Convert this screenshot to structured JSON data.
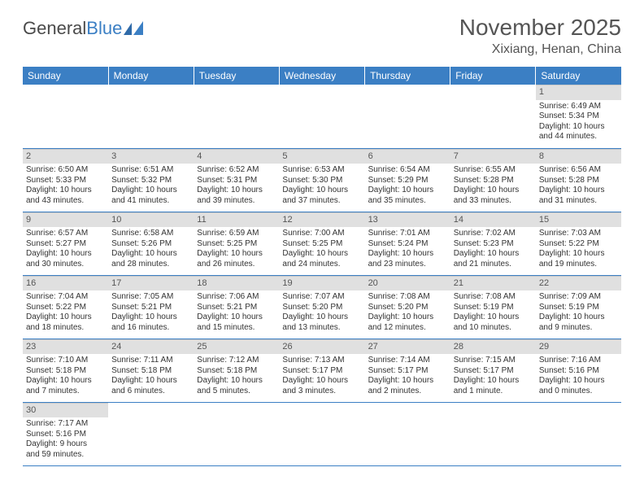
{
  "brand": {
    "part1": "General",
    "part2": "Blue"
  },
  "title": "November 2025",
  "location": "Xixiang, Henan, China",
  "dayHeaders": [
    "Sunday",
    "Monday",
    "Tuesday",
    "Wednesday",
    "Thursday",
    "Friday",
    "Saturday"
  ],
  "colors": {
    "headerBg": "#3b7fc4",
    "daynumBg": "#e0e0e0"
  },
  "weeks": [
    [
      {
        "empty": true
      },
      {
        "empty": true
      },
      {
        "empty": true
      },
      {
        "empty": true
      },
      {
        "empty": true
      },
      {
        "empty": true
      },
      {
        "num": "1",
        "sunrise": "Sunrise: 6:49 AM",
        "sunset": "Sunset: 5:34 PM",
        "daylight1": "Daylight: 10 hours",
        "daylight2": "and 44 minutes."
      }
    ],
    [
      {
        "num": "2",
        "sunrise": "Sunrise: 6:50 AM",
        "sunset": "Sunset: 5:33 PM",
        "daylight1": "Daylight: 10 hours",
        "daylight2": "and 43 minutes."
      },
      {
        "num": "3",
        "sunrise": "Sunrise: 6:51 AM",
        "sunset": "Sunset: 5:32 PM",
        "daylight1": "Daylight: 10 hours",
        "daylight2": "and 41 minutes."
      },
      {
        "num": "4",
        "sunrise": "Sunrise: 6:52 AM",
        "sunset": "Sunset: 5:31 PM",
        "daylight1": "Daylight: 10 hours",
        "daylight2": "and 39 minutes."
      },
      {
        "num": "5",
        "sunrise": "Sunrise: 6:53 AM",
        "sunset": "Sunset: 5:30 PM",
        "daylight1": "Daylight: 10 hours",
        "daylight2": "and 37 minutes."
      },
      {
        "num": "6",
        "sunrise": "Sunrise: 6:54 AM",
        "sunset": "Sunset: 5:29 PM",
        "daylight1": "Daylight: 10 hours",
        "daylight2": "and 35 minutes."
      },
      {
        "num": "7",
        "sunrise": "Sunrise: 6:55 AM",
        "sunset": "Sunset: 5:28 PM",
        "daylight1": "Daylight: 10 hours",
        "daylight2": "and 33 minutes."
      },
      {
        "num": "8",
        "sunrise": "Sunrise: 6:56 AM",
        "sunset": "Sunset: 5:28 PM",
        "daylight1": "Daylight: 10 hours",
        "daylight2": "and 31 minutes."
      }
    ],
    [
      {
        "num": "9",
        "sunrise": "Sunrise: 6:57 AM",
        "sunset": "Sunset: 5:27 PM",
        "daylight1": "Daylight: 10 hours",
        "daylight2": "and 30 minutes."
      },
      {
        "num": "10",
        "sunrise": "Sunrise: 6:58 AM",
        "sunset": "Sunset: 5:26 PM",
        "daylight1": "Daylight: 10 hours",
        "daylight2": "and 28 minutes."
      },
      {
        "num": "11",
        "sunrise": "Sunrise: 6:59 AM",
        "sunset": "Sunset: 5:25 PM",
        "daylight1": "Daylight: 10 hours",
        "daylight2": "and 26 minutes."
      },
      {
        "num": "12",
        "sunrise": "Sunrise: 7:00 AM",
        "sunset": "Sunset: 5:25 PM",
        "daylight1": "Daylight: 10 hours",
        "daylight2": "and 24 minutes."
      },
      {
        "num": "13",
        "sunrise": "Sunrise: 7:01 AM",
        "sunset": "Sunset: 5:24 PM",
        "daylight1": "Daylight: 10 hours",
        "daylight2": "and 23 minutes."
      },
      {
        "num": "14",
        "sunrise": "Sunrise: 7:02 AM",
        "sunset": "Sunset: 5:23 PM",
        "daylight1": "Daylight: 10 hours",
        "daylight2": "and 21 minutes."
      },
      {
        "num": "15",
        "sunrise": "Sunrise: 7:03 AM",
        "sunset": "Sunset: 5:22 PM",
        "daylight1": "Daylight: 10 hours",
        "daylight2": "and 19 minutes."
      }
    ],
    [
      {
        "num": "16",
        "sunrise": "Sunrise: 7:04 AM",
        "sunset": "Sunset: 5:22 PM",
        "daylight1": "Daylight: 10 hours",
        "daylight2": "and 18 minutes."
      },
      {
        "num": "17",
        "sunrise": "Sunrise: 7:05 AM",
        "sunset": "Sunset: 5:21 PM",
        "daylight1": "Daylight: 10 hours",
        "daylight2": "and 16 minutes."
      },
      {
        "num": "18",
        "sunrise": "Sunrise: 7:06 AM",
        "sunset": "Sunset: 5:21 PM",
        "daylight1": "Daylight: 10 hours",
        "daylight2": "and 15 minutes."
      },
      {
        "num": "19",
        "sunrise": "Sunrise: 7:07 AM",
        "sunset": "Sunset: 5:20 PM",
        "daylight1": "Daylight: 10 hours",
        "daylight2": "and 13 minutes."
      },
      {
        "num": "20",
        "sunrise": "Sunrise: 7:08 AM",
        "sunset": "Sunset: 5:20 PM",
        "daylight1": "Daylight: 10 hours",
        "daylight2": "and 12 minutes."
      },
      {
        "num": "21",
        "sunrise": "Sunrise: 7:08 AM",
        "sunset": "Sunset: 5:19 PM",
        "daylight1": "Daylight: 10 hours",
        "daylight2": "and 10 minutes."
      },
      {
        "num": "22",
        "sunrise": "Sunrise: 7:09 AM",
        "sunset": "Sunset: 5:19 PM",
        "daylight1": "Daylight: 10 hours",
        "daylight2": "and 9 minutes."
      }
    ],
    [
      {
        "num": "23",
        "sunrise": "Sunrise: 7:10 AM",
        "sunset": "Sunset: 5:18 PM",
        "daylight1": "Daylight: 10 hours",
        "daylight2": "and 7 minutes."
      },
      {
        "num": "24",
        "sunrise": "Sunrise: 7:11 AM",
        "sunset": "Sunset: 5:18 PM",
        "daylight1": "Daylight: 10 hours",
        "daylight2": "and 6 minutes."
      },
      {
        "num": "25",
        "sunrise": "Sunrise: 7:12 AM",
        "sunset": "Sunset: 5:18 PM",
        "daylight1": "Daylight: 10 hours",
        "daylight2": "and 5 minutes."
      },
      {
        "num": "26",
        "sunrise": "Sunrise: 7:13 AM",
        "sunset": "Sunset: 5:17 PM",
        "daylight1": "Daylight: 10 hours",
        "daylight2": "and 3 minutes."
      },
      {
        "num": "27",
        "sunrise": "Sunrise: 7:14 AM",
        "sunset": "Sunset: 5:17 PM",
        "daylight1": "Daylight: 10 hours",
        "daylight2": "and 2 minutes."
      },
      {
        "num": "28",
        "sunrise": "Sunrise: 7:15 AM",
        "sunset": "Sunset: 5:17 PM",
        "daylight1": "Daylight: 10 hours",
        "daylight2": "and 1 minute."
      },
      {
        "num": "29",
        "sunrise": "Sunrise: 7:16 AM",
        "sunset": "Sunset: 5:16 PM",
        "daylight1": "Daylight: 10 hours",
        "daylight2": "and 0 minutes."
      }
    ],
    [
      {
        "num": "30",
        "sunrise": "Sunrise: 7:17 AM",
        "sunset": "Sunset: 5:16 PM",
        "daylight1": "Daylight: 9 hours",
        "daylight2": "and 59 minutes."
      },
      {
        "empty": true
      },
      {
        "empty": true
      },
      {
        "empty": true
      },
      {
        "empty": true
      },
      {
        "empty": true
      },
      {
        "empty": true
      }
    ]
  ]
}
